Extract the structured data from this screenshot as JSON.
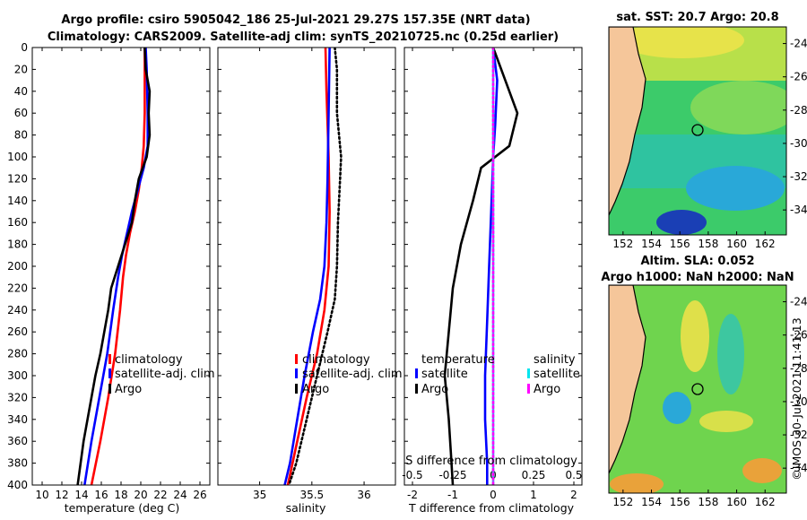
{
  "title": {
    "line1": "Argo profile: csiro 5905042_186 25-Jul-2021 29.27S 157.35E (NRT data)",
    "line2": "Climatology: CARS2009. Satellite-adj clim: synTS_20210725.nc (0.25d earlier)"
  },
  "colors": {
    "climatology": "#ff0000",
    "satellite": "#0000ff",
    "argo": "#000000",
    "sal_satellite": "#00e5ee",
    "sal_argo": "#ff00ff"
  },
  "depth_ticks": [
    "0",
    "20",
    "40",
    "60",
    "80",
    "100",
    "120",
    "140",
    "160",
    "180",
    "200",
    "220",
    "240",
    "260",
    "280",
    "300",
    "320",
    "340",
    "360",
    "380",
    "400"
  ],
  "legend": {
    "climatology": "climatology",
    "satellite_adj": "satellite-adj. clim",
    "argo": "Argo"
  },
  "chart_data": [
    {
      "type": "line",
      "name": "temperature-profile",
      "xlabel": "temperature (deg C)",
      "xlim": [
        9,
        27
      ],
      "ylim": [
        0,
        400
      ],
      "x_ticks": [
        "10",
        "12",
        "14",
        "16",
        "18",
        "20",
        "22",
        "24",
        "26"
      ],
      "series": [
        {
          "name": "climatology",
          "style": "solid",
          "points": [
            [
              20.4,
              0
            ],
            [
              20.4,
              20
            ],
            [
              20.4,
              60
            ],
            [
              20.3,
              90
            ],
            [
              20.1,
              110
            ],
            [
              19.8,
              130
            ],
            [
              19.4,
              150
            ],
            [
              18.9,
              170
            ],
            [
              18.5,
              190
            ],
            [
              18.2,
              210
            ],
            [
              17.9,
              240
            ],
            [
              17.4,
              280
            ],
            [
              16.7,
              320
            ],
            [
              15.9,
              360
            ],
            [
              15.0,
              400
            ]
          ]
        },
        {
          "name": "satellite-adj. clim",
          "style": "solid",
          "points": [
            [
              20.5,
              0
            ],
            [
              20.6,
              20
            ],
            [
              20.7,
              60
            ],
            [
              20.7,
              90
            ],
            [
              20.3,
              110
            ],
            [
              19.7,
              130
            ],
            [
              19.1,
              150
            ],
            [
              18.6,
              170
            ],
            [
              18.1,
              190
            ],
            [
              17.7,
              210
            ],
            [
              17.2,
              240
            ],
            [
              16.6,
              280
            ],
            [
              15.8,
              320
            ],
            [
              15.0,
              360
            ],
            [
              14.3,
              400
            ]
          ]
        },
        {
          "name": "Argo",
          "style": "solid",
          "points": [
            [
              20.4,
              0
            ],
            [
              20.5,
              20
            ],
            [
              20.9,
              40
            ],
            [
              20.8,
              60
            ],
            [
              20.9,
              80
            ],
            [
              20.6,
              100
            ],
            [
              19.8,
              120
            ],
            [
              19.4,
              140
            ],
            [
              19.1,
              160
            ],
            [
              18.4,
              180
            ],
            [
              17.7,
              200
            ],
            [
              17.0,
              220
            ],
            [
              16.7,
              240
            ],
            [
              16.3,
              260
            ],
            [
              15.9,
              280
            ],
            [
              15.4,
              300
            ],
            [
              15.0,
              320
            ],
            [
              14.6,
              340
            ],
            [
              14.2,
              360
            ],
            [
              13.9,
              380
            ],
            [
              13.6,
              400
            ]
          ]
        }
      ]
    },
    {
      "type": "line",
      "name": "salinity-profile",
      "xlabel": "salinity",
      "xlim": [
        34.6,
        36.3
      ],
      "ylim": [
        0,
        400
      ],
      "x_ticks": [
        "35",
        "35.5",
        "36"
      ],
      "series": [
        {
          "name": "climatology",
          "style": "solid",
          "points": [
            [
              35.63,
              0
            ],
            [
              35.64,
              40
            ],
            [
              35.66,
              100
            ],
            [
              35.67,
              150
            ],
            [
              35.66,
              200
            ],
            [
              35.62,
              240
            ],
            [
              35.55,
              280
            ],
            [
              35.45,
              320
            ],
            [
              35.36,
              360
            ],
            [
              35.27,
              400
            ]
          ]
        },
        {
          "name": "satellite-adj. clim",
          "style": "solid",
          "points": [
            [
              35.67,
              0
            ],
            [
              35.66,
              60
            ],
            [
              35.65,
              120
            ],
            [
              35.64,
              160
            ],
            [
              35.62,
              200
            ],
            [
              35.58,
              230
            ],
            [
              35.51,
              260
            ],
            [
              35.43,
              300
            ],
            [
              35.36,
              340
            ],
            [
              35.29,
              380
            ],
            [
              35.24,
              400
            ]
          ]
        },
        {
          "name": "Argo",
          "style": "dotted",
          "points": [
            [
              35.72,
              0
            ],
            [
              35.74,
              20
            ],
            [
              35.74,
              60
            ],
            [
              35.76,
              80
            ],
            [
              35.78,
              100
            ],
            [
              35.77,
              120
            ],
            [
              35.75,
              160
            ],
            [
              35.74,
              200
            ],
            [
              35.72,
              230
            ],
            [
              35.65,
              260
            ],
            [
              35.55,
              300
            ],
            [
              35.45,
              340
            ],
            [
              35.35,
              380
            ],
            [
              35.28,
              400
            ]
          ]
        }
      ]
    },
    {
      "type": "line",
      "name": "difference-profile",
      "xlabel": "T difference from climatology",
      "xlim": [
        -2.2,
        2.2
      ],
      "ylim": [
        0,
        400
      ],
      "x_ticks": [
        "-2",
        "-1",
        "0",
        "1",
        "2"
      ],
      "top_axis_label": "S difference from climatology",
      "top_ticks": [
        "-0.5",
        "-0.25",
        "0",
        "0.25",
        "0.5"
      ],
      "series": [
        {
          "name": "temperature satellite",
          "style": "solid",
          "points": [
            [
              0.0,
              0
            ],
            [
              0.1,
              30
            ],
            [
              0.05,
              70
            ],
            [
              0.0,
              100
            ],
            [
              -0.05,
              150
            ],
            [
              -0.1,
              200
            ],
            [
              -0.15,
              250
            ],
            [
              -0.2,
              300
            ],
            [
              -0.2,
              340
            ],
            [
              -0.15,
              380
            ],
            [
              -0.15,
              400
            ]
          ]
        },
        {
          "name": "temperature Argo",
          "style": "solid",
          "points": [
            [
              0.0,
              0
            ],
            [
              0.3,
              30
            ],
            [
              0.6,
              60
            ],
            [
              0.4,
              90
            ],
            [
              -0.3,
              110
            ],
            [
              -0.5,
              140
            ],
            [
              -0.8,
              180
            ],
            [
              -1.0,
              220
            ],
            [
              -1.1,
              260
            ],
            [
              -1.2,
              300
            ],
            [
              -1.1,
              340
            ],
            [
              -1.05,
              370
            ],
            [
              -1.0,
              400
            ]
          ]
        },
        {
          "name": "salinity satellite",
          "style": "solid",
          "points": [
            [
              0.0,
              0
            ],
            [
              0.0,
              100
            ],
            [
              0.0,
              200
            ],
            [
              0.0,
              300
            ],
            [
              0.0,
              400
            ]
          ]
        },
        {
          "name": "salinity Argo",
          "style": "dotted",
          "points": [
            [
              0.0,
              0
            ],
            [
              0.0,
              400
            ]
          ]
        }
      ],
      "legend_left_title": "temperature",
      "legend_right_title": "salinity",
      "legend_satellite": "satellite",
      "legend_argo": "Argo"
    }
  ],
  "maps": {
    "sst_title": "sat. SST: 20.7 Argo: 20.8",
    "sla_title_line1": "Altim. SLA: 0.052",
    "sla_title_line2": "Argo h1000: NaN h2000: NaN",
    "lon_ticks": [
      "152",
      "154",
      "156",
      "158",
      "160",
      "162"
    ],
    "lat_ticks": [
      "-24",
      "-26",
      "-28",
      "-30",
      "-32",
      "-34"
    ],
    "float_lon": 157.35,
    "float_lat": -29.27
  },
  "credit": "©IMOS 30-Jul-2021 11:41:13"
}
